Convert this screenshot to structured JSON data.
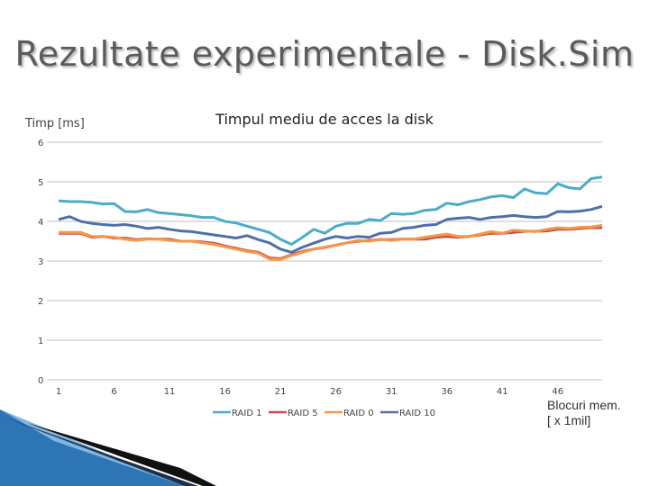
{
  "slide": {
    "title": "Rezultate experimentale - Disk.Sim"
  },
  "chart_data": {
    "type": "line",
    "title": "Timpul mediu de acces la disk",
    "ylabel": "Timp [ms]",
    "xlabel_lines": [
      "Blocuri mem.",
      "[ x 1mil]"
    ],
    "x_ticks": [
      1,
      6,
      11,
      16,
      21,
      26,
      31,
      36,
      41,
      46
    ],
    "y_ticks": [
      0,
      1,
      2,
      3,
      4,
      5,
      6
    ],
    "xlim": [
      1,
      50
    ],
    "ylim": [
      0,
      6
    ],
    "grid": "horizontal",
    "legend_position": "bottom",
    "x": [
      1,
      2,
      3,
      4,
      5,
      6,
      7,
      8,
      9,
      10,
      11,
      12,
      13,
      14,
      15,
      16,
      17,
      18,
      19,
      20,
      21,
      22,
      23,
      24,
      25,
      26,
      27,
      28,
      29,
      30,
      31,
      32,
      33,
      34,
      35,
      36,
      37,
      38,
      39,
      40,
      41,
      42,
      43,
      44,
      45,
      46,
      47,
      48,
      49,
      50
    ],
    "series": [
      {
        "name": "RAID 1",
        "color": "#4bacc6",
        "values": [
          4.52,
          4.5,
          4.5,
          4.48,
          4.44,
          4.45,
          4.25,
          4.24,
          4.3,
          4.22,
          4.2,
          4.17,
          4.14,
          4.1,
          4.1,
          4.0,
          3.96,
          3.88,
          3.8,
          3.72,
          3.55,
          3.42,
          3.6,
          3.8,
          3.7,
          3.88,
          3.95,
          3.95,
          4.05,
          4.02,
          4.2,
          4.18,
          4.2,
          4.28,
          4.3,
          4.46,
          4.42,
          4.5,
          4.55,
          4.62,
          4.65,
          4.6,
          4.82,
          4.72,
          4.7,
          4.95,
          4.85,
          4.82,
          5.08,
          5.12
        ]
      },
      {
        "name": "RAID 5",
        "color": "#c0504d",
        "values": [
          3.7,
          3.7,
          3.7,
          3.6,
          3.62,
          3.58,
          3.58,
          3.54,
          3.56,
          3.55,
          3.55,
          3.5,
          3.5,
          3.48,
          3.45,
          3.38,
          3.32,
          3.26,
          3.22,
          3.08,
          3.06,
          3.16,
          3.24,
          3.3,
          3.34,
          3.4,
          3.46,
          3.5,
          3.52,
          3.54,
          3.54,
          3.55,
          3.55,
          3.55,
          3.6,
          3.62,
          3.6,
          3.62,
          3.66,
          3.7,
          3.7,
          3.72,
          3.75,
          3.75,
          3.76,
          3.8,
          3.8,
          3.82,
          3.84,
          3.84
        ]
      },
      {
        "name": "RAID 0",
        "color": "#f79646",
        "values": [
          3.72,
          3.72,
          3.72,
          3.62,
          3.62,
          3.6,
          3.55,
          3.52,
          3.55,
          3.55,
          3.52,
          3.5,
          3.5,
          3.46,
          3.42,
          3.36,
          3.3,
          3.24,
          3.2,
          3.05,
          3.04,
          3.14,
          3.22,
          3.3,
          3.35,
          3.4,
          3.46,
          3.52,
          3.5,
          3.55,
          3.52,
          3.55,
          3.55,
          3.6,
          3.64,
          3.68,
          3.62,
          3.62,
          3.68,
          3.74,
          3.7,
          3.78,
          3.76,
          3.74,
          3.8,
          3.84,
          3.82,
          3.85,
          3.86,
          3.9
        ]
      },
      {
        "name": "RAID 10",
        "color": "#4f6fa8",
        "values": [
          4.05,
          4.12,
          4.0,
          3.95,
          3.92,
          3.9,
          3.92,
          3.88,
          3.82,
          3.85,
          3.8,
          3.76,
          3.74,
          3.7,
          3.66,
          3.62,
          3.58,
          3.64,
          3.54,
          3.46,
          3.3,
          3.22,
          3.35,
          3.45,
          3.55,
          3.62,
          3.58,
          3.62,
          3.6,
          3.7,
          3.72,
          3.82,
          3.85,
          3.9,
          3.92,
          4.05,
          4.08,
          4.1,
          4.05,
          4.1,
          4.12,
          4.15,
          4.12,
          4.1,
          4.12,
          4.25,
          4.24,
          4.26,
          4.3,
          4.38
        ]
      }
    ]
  },
  "icons": {
    "corner_decoration": "corner-swoosh-decoration"
  }
}
